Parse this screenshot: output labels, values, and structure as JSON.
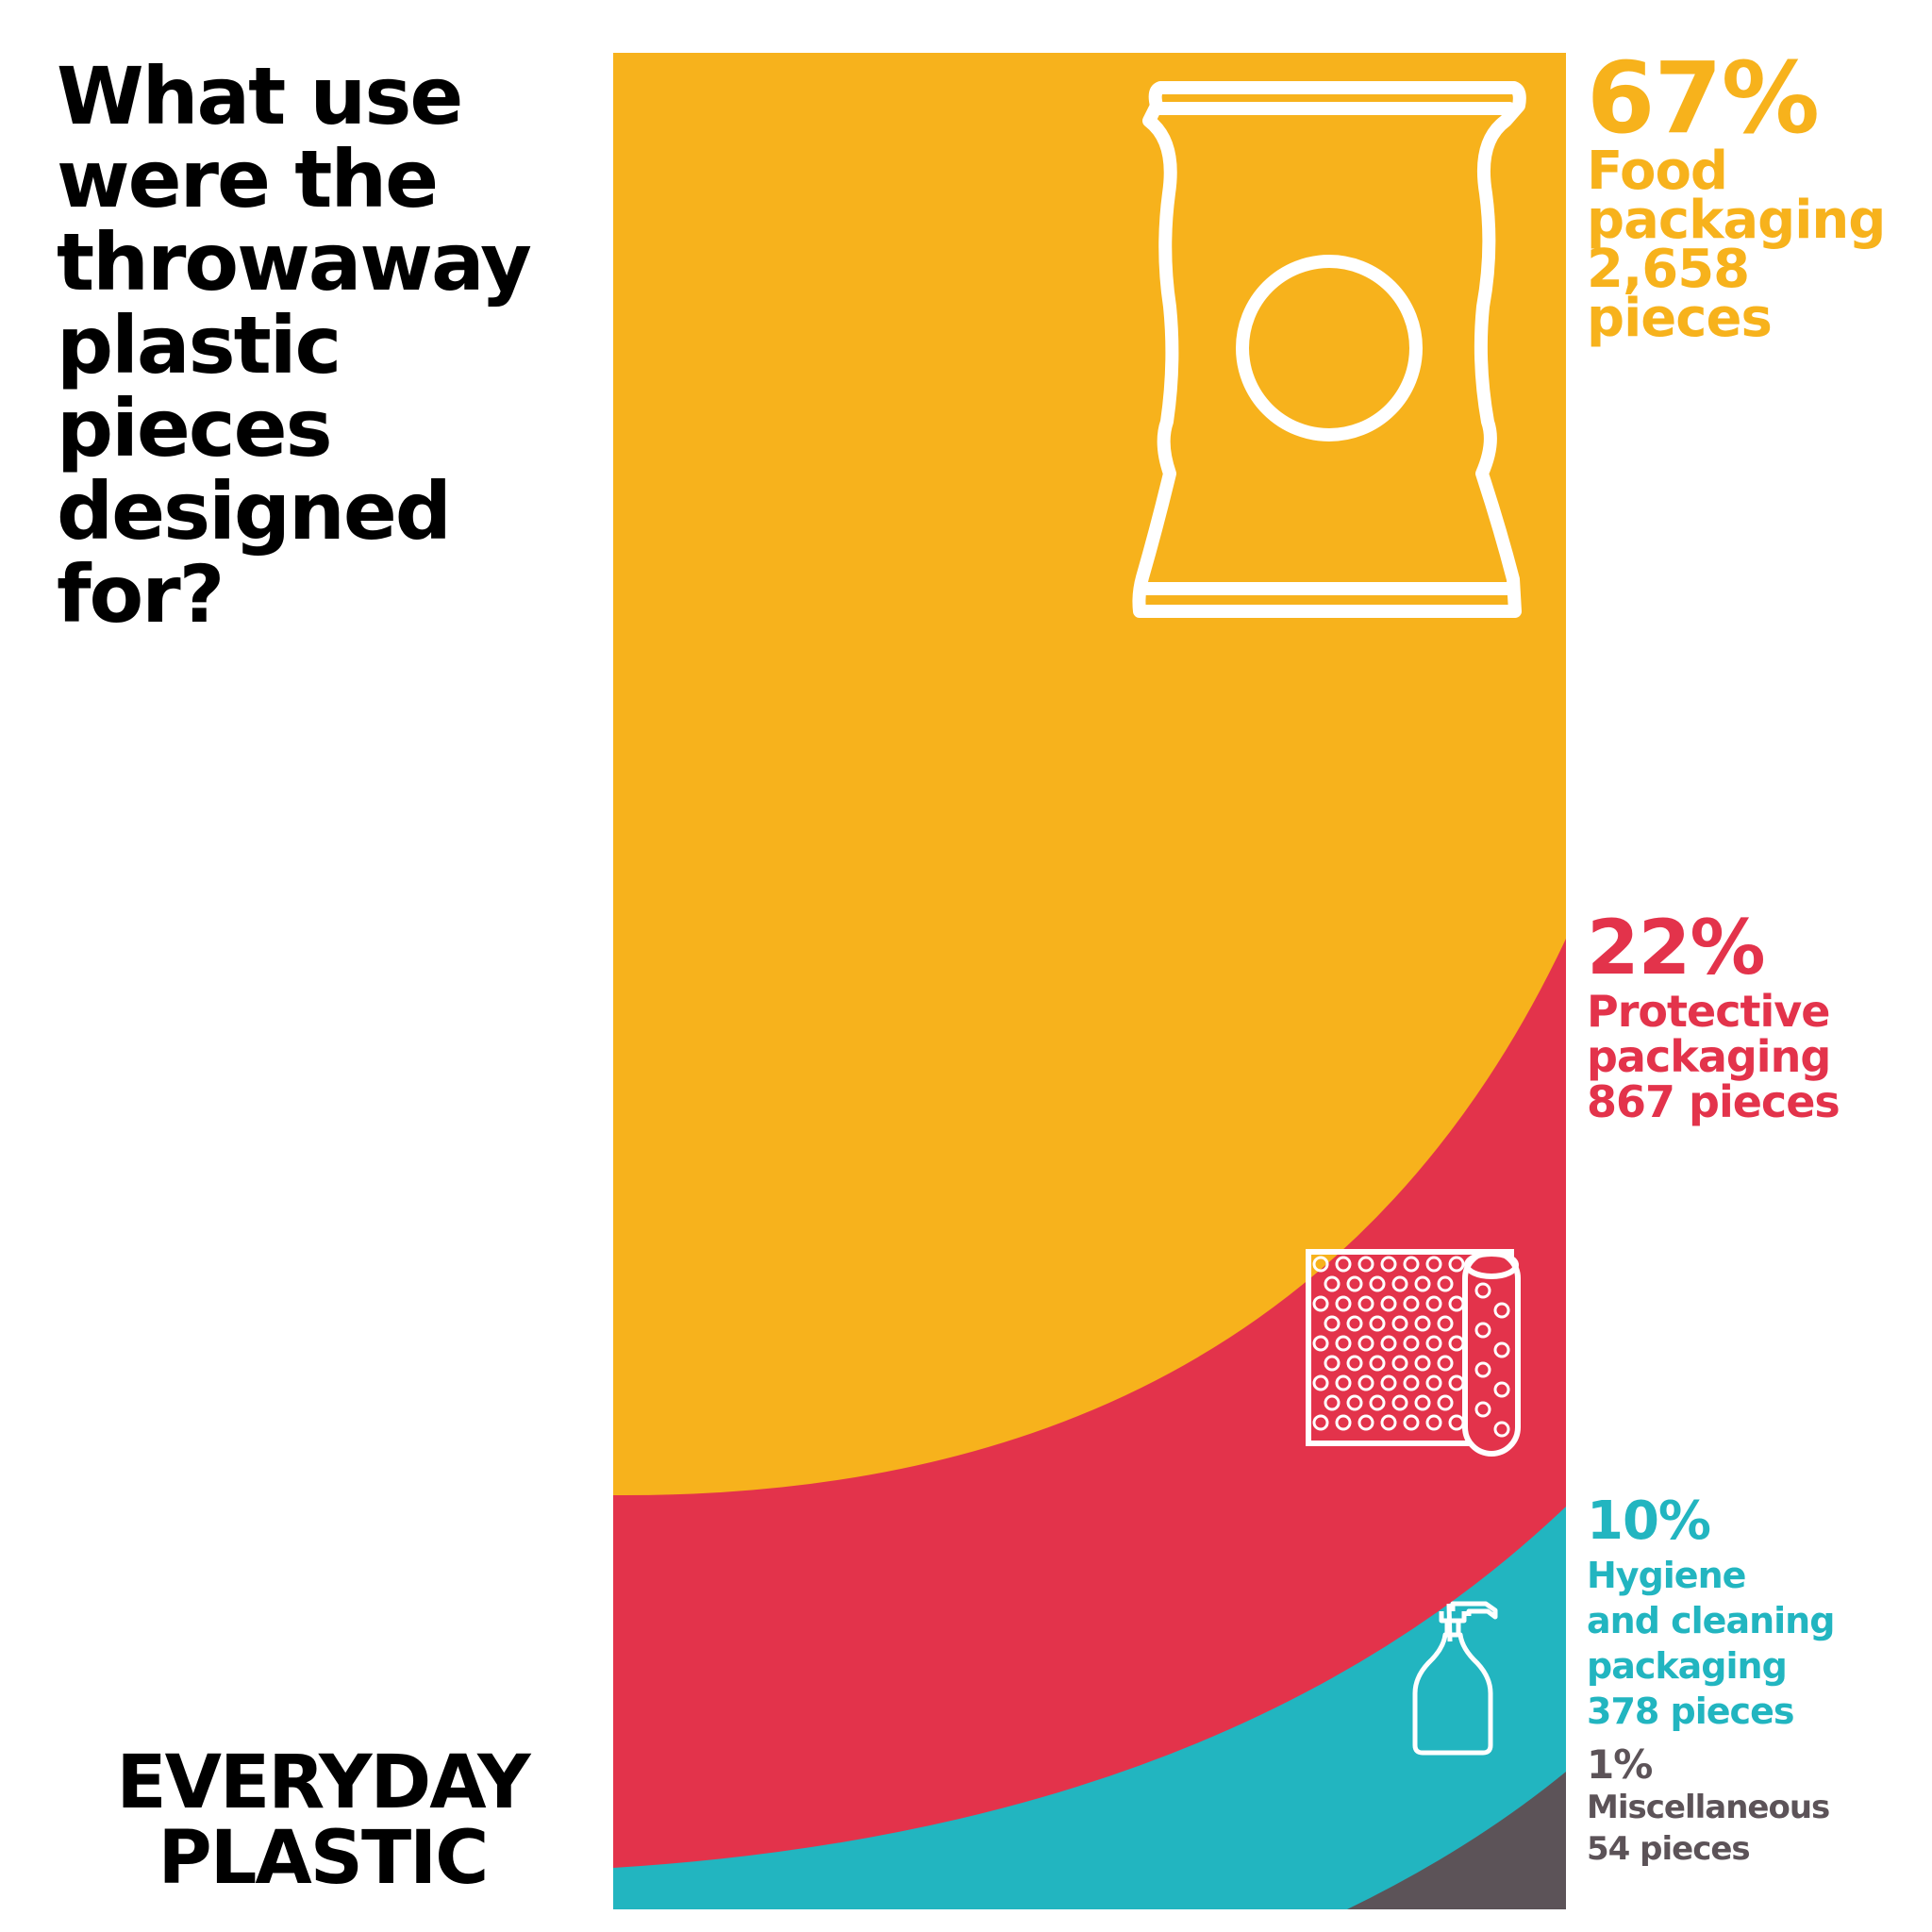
{
  "question": "What use\nwere the\nthrowaway\nplastic\npieces\ndesigned\nfor?",
  "logo": {
    "line1": "EVERYDAY",
    "line2": "PLASTIC"
  },
  "colors": {
    "food": "#F7B21C",
    "protective": "#E3334B",
    "hygiene": "#22B5C0",
    "misc": "#5C5358",
    "icon": "#FFFFFF"
  },
  "icons": {
    "food": "snack-bag-icon",
    "protective": "bubble-wrap-icon",
    "hygiene": "soap-pump-bottle-icon"
  },
  "chart_data": {
    "type": "area",
    "title": "What use were the throwaway plastic pieces designed for?",
    "series": [
      {
        "name": "Food packaging",
        "percent": 67,
        "pieces": 2658
      },
      {
        "name": "Protective packaging",
        "percent": 22,
        "pieces": 867
      },
      {
        "name": "Hygiene and cleaning packaging",
        "percent": 10,
        "pieces": 378
      },
      {
        "name": "Miscellaneous",
        "percent": 1,
        "pieces": 54
      }
    ],
    "labels": [
      {
        "pct": "67%",
        "desc": "Food\npackaging\n2,658\npieces"
      },
      {
        "pct": "22%",
        "desc": "Protective\npackaging\n867 pieces"
      },
      {
        "pct": "10%",
        "desc": "Hygiene\nand cleaning\npackaging\n378 pieces"
      },
      {
        "pct": "1%",
        "desc": "Miscellaneous\n54 pieces"
      }
    ]
  }
}
